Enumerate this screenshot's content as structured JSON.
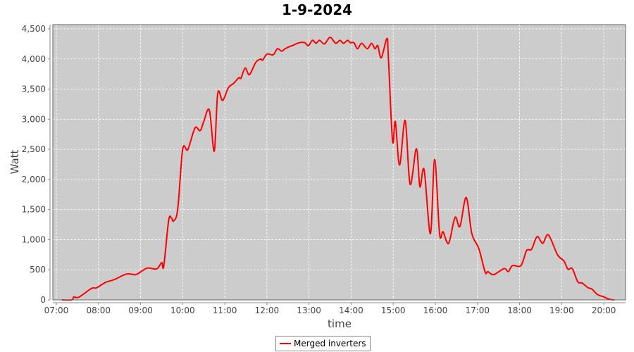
{
  "chart_data": {
    "type": "line",
    "title": "1-9-2024",
    "xlabel": "time",
    "ylabel": "Watt",
    "ylim": [
      0,
      4570
    ],
    "xlim": [
      "06:55",
      "20:31"
    ],
    "grid": true,
    "legend_position": "bottom",
    "background_color": "#cccccc",
    "yticks": [
      "0",
      "500",
      "1,000",
      "1,500",
      "2,000",
      "2,500",
      "3,000",
      "3,500",
      "4,000",
      "4,500"
    ],
    "xticks": [
      "07:00",
      "08:00",
      "09:00",
      "10:00",
      "11:00",
      "12:00",
      "13:00",
      "14:00",
      "15:00",
      "16:00",
      "17:00",
      "18:00",
      "19:00",
      "20:00"
    ],
    "series": [
      {
        "name": "Merged inverters",
        "color": "#ff0000",
        "points": [
          [
            "07:08",
            0
          ],
          [
            "07:22",
            0
          ],
          [
            "07:25",
            50
          ],
          [
            "07:32",
            45
          ],
          [
            "07:50",
            190
          ],
          [
            "07:57",
            200
          ],
          [
            "08:10",
            290
          ],
          [
            "08:23",
            340
          ],
          [
            "08:40",
            430
          ],
          [
            "08:53",
            420
          ],
          [
            "09:02",
            480
          ],
          [
            "09:10",
            530
          ],
          [
            "09:23",
            515
          ],
          [
            "09:30",
            620
          ],
          [
            "09:33",
            560
          ],
          [
            "09:40",
            1320
          ],
          [
            "09:44",
            1360
          ],
          [
            "09:47",
            1310
          ],
          [
            "09:53",
            1510
          ],
          [
            "10:00",
            2500
          ],
          [
            "10:07",
            2490
          ],
          [
            "10:15",
            2780
          ],
          [
            "10:19",
            2870
          ],
          [
            "10:25",
            2810
          ],
          [
            "10:30",
            2960
          ],
          [
            "10:38",
            3150
          ],
          [
            "10:45",
            2470
          ],
          [
            "10:50",
            3430
          ],
          [
            "10:57",
            3310
          ],
          [
            "11:05",
            3520
          ],
          [
            "11:13",
            3600
          ],
          [
            "11:20",
            3690
          ],
          [
            "11:23",
            3680
          ],
          [
            "11:29",
            3850
          ],
          [
            "11:35",
            3740
          ],
          [
            "11:44",
            3940
          ],
          [
            "11:51",
            4000
          ],
          [
            "11:54",
            3980
          ],
          [
            "12:00",
            4080
          ],
          [
            "12:09",
            4070
          ],
          [
            "12:15",
            4170
          ],
          [
            "12:21",
            4130
          ],
          [
            "12:26",
            4170
          ],
          [
            "12:33",
            4210
          ],
          [
            "12:36",
            4220
          ],
          [
            "12:46",
            4270
          ],
          [
            "12:54",
            4270
          ],
          [
            "12:59",
            4220
          ],
          [
            "13:05",
            4310
          ],
          [
            "13:10",
            4260
          ],
          [
            "13:15",
            4310
          ],
          [
            "13:22",
            4250
          ],
          [
            "13:30",
            4360
          ],
          [
            "13:38",
            4260
          ],
          [
            "13:44",
            4310
          ],
          [
            "13:49",
            4260
          ],
          [
            "13:55",
            4310
          ],
          [
            "13:59",
            4270
          ],
          [
            "14:04",
            4270
          ],
          [
            "14:09",
            4170
          ],
          [
            "14:15",
            4260
          ],
          [
            "14:23",
            4170
          ],
          [
            "14:29",
            4260
          ],
          [
            "14:34",
            4170
          ],
          [
            "14:38",
            4220
          ],
          [
            "14:43",
            4020
          ],
          [
            "14:51",
            4340
          ],
          [
            "14:53",
            4050
          ],
          [
            "14:59",
            2640
          ],
          [
            "15:03",
            2960
          ],
          [
            "15:09",
            2240
          ],
          [
            "15:17",
            2980
          ],
          [
            "15:24",
            1920
          ],
          [
            "15:33",
            2510
          ],
          [
            "15:38",
            1880
          ],
          [
            "15:44",
            2160
          ],
          [
            "15:53",
            1100
          ],
          [
            "15:59",
            2330
          ],
          [
            "16:06",
            1100
          ],
          [
            "16:11",
            1130
          ],
          [
            "16:19",
            940
          ],
          [
            "16:28",
            1370
          ],
          [
            "16:35",
            1220
          ],
          [
            "16:44",
            1700
          ],
          [
            "16:52",
            1100
          ],
          [
            "17:02",
            850
          ],
          [
            "17:11",
            460
          ],
          [
            "17:15",
            470
          ],
          [
            "17:23",
            420
          ],
          [
            "17:38",
            520
          ],
          [
            "17:44",
            470
          ],
          [
            "17:50",
            570
          ],
          [
            "18:02",
            570
          ],
          [
            "18:10",
            820
          ],
          [
            "18:17",
            840
          ],
          [
            "18:25",
            1050
          ],
          [
            "18:33",
            940
          ],
          [
            "18:41",
            1080
          ],
          [
            "18:54",
            750
          ],
          [
            "19:03",
            650
          ],
          [
            "19:09",
            510
          ],
          [
            "19:15",
            520
          ],
          [
            "19:23",
            300
          ],
          [
            "19:29",
            280
          ],
          [
            "19:38",
            200
          ],
          [
            "19:43",
            180
          ],
          [
            "19:51",
            90
          ],
          [
            "20:00",
            50
          ],
          [
            "20:08",
            10
          ],
          [
            "20:15",
            0
          ]
        ]
      }
    ]
  }
}
